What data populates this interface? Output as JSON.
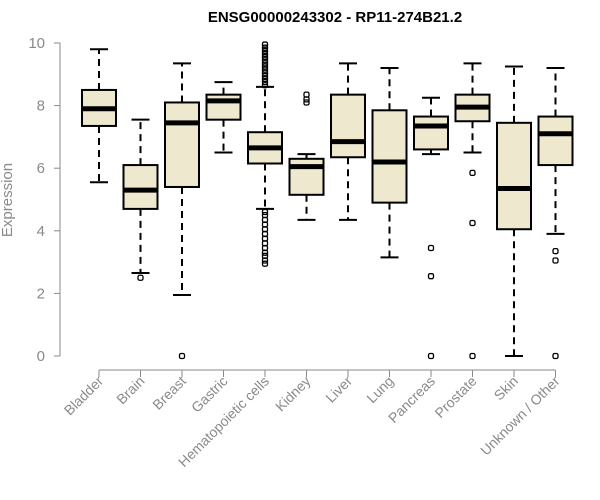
{
  "chart_data": {
    "type": "boxplot",
    "title": "ENSG00000243302 - RP11-274B21.2",
    "xlabel": "",
    "ylabel": "Expression",
    "ylim": [
      0,
      10
    ],
    "yticks": [
      0,
      2,
      4,
      6,
      8,
      10
    ],
    "categories": [
      "Bladder",
      "Brain",
      "Breast",
      "Gastric",
      "Hematopoietic cells",
      "Kidney",
      "Liver",
      "Lung",
      "Pancreas",
      "Prostate",
      "Skin",
      "Unknown / Other"
    ],
    "boxes": [
      {
        "name": "Bladder",
        "min": 5.55,
        "q1": 7.35,
        "median": 7.9,
        "q3": 8.5,
        "max": 9.8,
        "outliers": []
      },
      {
        "name": "Brain",
        "min": 2.65,
        "q1": 4.7,
        "median": 5.3,
        "q3": 6.1,
        "max": 7.55,
        "outliers": [
          2.5
        ]
      },
      {
        "name": "Breast",
        "min": 1.95,
        "q1": 5.4,
        "median": 7.45,
        "q3": 8.1,
        "max": 9.35,
        "outliers": [
          0.0
        ]
      },
      {
        "name": "Gastric",
        "min": 6.5,
        "q1": 7.55,
        "median": 8.15,
        "q3": 8.35,
        "max": 8.75,
        "outliers": []
      },
      {
        "name": "Hematopoietic cells",
        "min": 4.7,
        "q1": 6.15,
        "median": 6.65,
        "q3": 7.15,
        "max": 8.6,
        "outliers": [
          2.95,
          3.05,
          3.2,
          3.3,
          3.45,
          3.6,
          3.75,
          3.9,
          4.05,
          4.2,
          4.35,
          4.5,
          4.6,
          8.65,
          8.75,
          8.85,
          8.95,
          9.05,
          9.15,
          9.25,
          9.35,
          9.45,
          9.55,
          9.65,
          9.75,
          9.85,
          9.95
        ]
      },
      {
        "name": "Kidney",
        "min": 4.35,
        "q1": 5.15,
        "median": 6.05,
        "q3": 6.3,
        "max": 6.45,
        "outliers": [
          8.1,
          8.2,
          8.35
        ]
      },
      {
        "name": "Liver",
        "min": 4.35,
        "q1": 6.35,
        "median": 6.85,
        "q3": 8.35,
        "max": 9.35,
        "outliers": []
      },
      {
        "name": "Lung",
        "min": 3.15,
        "q1": 4.9,
        "median": 6.2,
        "q3": 7.85,
        "max": 9.2,
        "outliers": []
      },
      {
        "name": "Pancreas",
        "min": 6.45,
        "q1": 6.6,
        "median": 7.35,
        "q3": 7.65,
        "max": 8.25,
        "outliers": [
          0.0,
          2.55,
          3.45
        ]
      },
      {
        "name": "Prostate",
        "min": 6.5,
        "q1": 7.5,
        "median": 7.95,
        "q3": 8.35,
        "max": 9.35,
        "outliers": [
          0.0,
          4.25,
          5.85
        ]
      },
      {
        "name": "Skin",
        "min": 0.0,
        "q1": 4.05,
        "median": 5.35,
        "q3": 7.45,
        "max": 9.25,
        "outliers": []
      },
      {
        "name": "Unknown / Other",
        "min": 3.9,
        "q1": 6.1,
        "median": 7.1,
        "q3": 7.65,
        "max": 9.2,
        "outliers": [
          0.0,
          3.05,
          3.35
        ]
      }
    ]
  }
}
